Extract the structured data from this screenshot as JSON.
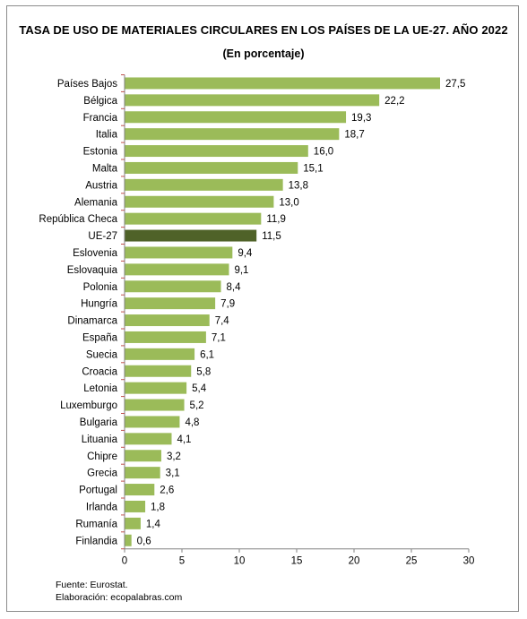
{
  "header": {
    "title": "TASA DE USO DE MATERIALES CIRCULARES EN LOS PAÍSES DE LA UE-27. AÑO 2022",
    "subtitle": "(En porcentaje)"
  },
  "footer": {
    "source": "Fuente: Eurostat.",
    "credit": "Elaboración: ecopalabras.com"
  },
  "colors": {
    "bar": "#9bbb59",
    "highlight_bar": "#4f6228",
    "axis": "#808080",
    "tick_mark": "#c0504d"
  },
  "chart_data": {
    "type": "bar",
    "orientation": "horizontal",
    "title": "TASA DE USO DE MATERIALES CIRCULARES EN LOS PAÍSES DE LA UE-27. AÑO 2022",
    "subtitle": "(En porcentaje)",
    "categories": [
      "Países Bajos",
      "Bélgica",
      "Francia",
      "Italia",
      "Estonia",
      "Malta",
      "Austria",
      "Alemania",
      "República Checa",
      "UE-27",
      "Eslovenia",
      "Eslovaquia",
      "Polonia",
      "Hungría",
      "Dinamarca",
      "España",
      "Suecia",
      "Croacia",
      "Letonia",
      "Luxemburgo",
      "Bulgaria",
      "Lituania",
      "Chipre",
      "Grecia",
      "Portugal",
      "Irlanda",
      "Rumanía",
      "Finlandia"
    ],
    "values": [
      27.5,
      22.2,
      19.3,
      18.7,
      16.0,
      15.1,
      13.8,
      13.0,
      11.9,
      11.5,
      9.4,
      9.1,
      8.4,
      7.9,
      7.4,
      7.1,
      6.1,
      5.8,
      5.4,
      5.2,
      4.8,
      4.1,
      3.2,
      3.1,
      2.6,
      1.8,
      1.4,
      0.6
    ],
    "value_labels": [
      "27,5",
      "22,2",
      "19,3",
      "18,7",
      "16,0",
      "15,1",
      "13,8",
      "13,0",
      "11,9",
      "11,5",
      "9,4",
      "9,1",
      "8,4",
      "7,9",
      "7,4",
      "7,1",
      "6,1",
      "5,8",
      "5,4",
      "5,2",
      "4,8",
      "4,1",
      "3,2",
      "3,1",
      "2,6",
      "1,8",
      "1,4",
      "0,6"
    ],
    "highlight": "UE-27",
    "xlim": [
      0,
      30
    ],
    "xticks": [
      0,
      5,
      10,
      15,
      20,
      25,
      30
    ],
    "xlabel": "",
    "ylabel": "",
    "grid": false,
    "legend": "none"
  }
}
